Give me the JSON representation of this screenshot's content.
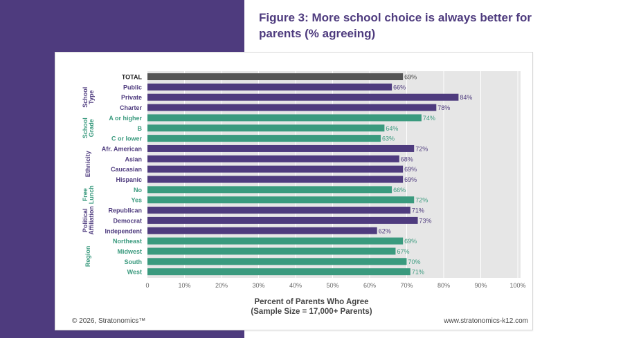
{
  "title": "Figure 3: More school choice is always better for parents (% agreeing)",
  "footer": {
    "copyright": "© 2026, Stratonomics™",
    "url": "www.stratonomics-k12.com"
  },
  "colors": {
    "purple": "#4e3b7e",
    "green": "#3a9a7e",
    "total": "#555555",
    "plot_bg": "#e6e6e6"
  },
  "chart_data": {
    "type": "bar",
    "orientation": "horizontal",
    "title": "Figure 3: More school choice is always better for parents (% agreeing)",
    "xlabel": "Percent of Parents Who Agree",
    "xlabel_sub": "(Sample Size = 17,000+ Parents)",
    "xlim": [
      0,
      100
    ],
    "xticks": [
      "0",
      "10%",
      "20%",
      "30%",
      "40%",
      "50%",
      "60%",
      "70%",
      "80%",
      "90%",
      "100%"
    ],
    "grid": true,
    "groups": [
      {
        "name": "",
        "color": "total",
        "items": [
          {
            "label": "TOTAL",
            "value": 69
          }
        ]
      },
      {
        "name": "School Type",
        "color": "purple",
        "items": [
          {
            "label": "Public",
            "value": 66
          },
          {
            "label": "Private",
            "value": 84
          },
          {
            "label": "Charter",
            "value": 78
          }
        ]
      },
      {
        "name": "School Grade",
        "color": "green",
        "items": [
          {
            "label": "A or higher",
            "value": 74
          },
          {
            "label": "B",
            "value": 64
          },
          {
            "label": "C or lower",
            "value": 63
          }
        ]
      },
      {
        "name": "Ethnicity",
        "color": "purple",
        "items": [
          {
            "label": "Afr. American",
            "value": 72
          },
          {
            "label": "Asian",
            "value": 68
          },
          {
            "label": "Caucasian",
            "value": 69
          },
          {
            "label": "Hispanic",
            "value": 69
          }
        ]
      },
      {
        "name": "Free Lunch",
        "color": "green",
        "items": [
          {
            "label": "No",
            "value": 66
          },
          {
            "label": "Yes",
            "value": 72
          }
        ]
      },
      {
        "name": "Political Affiliation",
        "color": "purple",
        "items": [
          {
            "label": "Republican",
            "value": 71
          },
          {
            "label": "Democrat",
            "value": 73
          },
          {
            "label": "Independent",
            "value": 62
          }
        ]
      },
      {
        "name": "Region",
        "color": "green",
        "items": [
          {
            "label": "Northeast",
            "value": 69
          },
          {
            "label": "Midwest",
            "value": 67
          },
          {
            "label": "South",
            "value": 70
          },
          {
            "label": "West",
            "value": 71
          }
        ]
      }
    ]
  }
}
